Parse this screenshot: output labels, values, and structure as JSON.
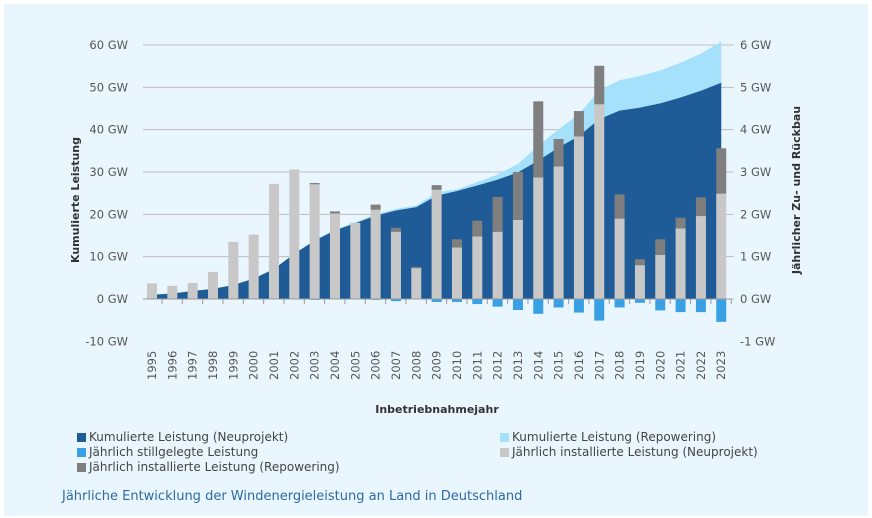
{
  "chart_data": {
    "type": "bar+area",
    "title": "",
    "caption": "Jährliche Entwicklung der Windenergieleistung an Land in Deutschland",
    "xlabel": "Inbetriebnahmejahr",
    "ylabel_left": "Kumulierte Leistung",
    "ylabel_right": "Jährlicher Zu- und Rückbau",
    "ylim_left": [
      -10,
      60
    ],
    "ylim_right": [
      -1,
      6
    ],
    "yticks_left": [
      "-10 GW",
      "0 GW",
      "10 GW",
      "20 GW",
      "30 GW",
      "40 GW",
      "50 GW",
      "60 GW"
    ],
    "yticks_right": [
      "-1 GW",
      "0 GW",
      "1 GW",
      "2 GW",
      "3 GW",
      "4 GW",
      "5 GW",
      "6 GW"
    ],
    "grid": true,
    "legend_position": "bottom",
    "categories": [
      "1995",
      "1996",
      "1997",
      "1998",
      "1999",
      "2000",
      "2001",
      "2002",
      "2003",
      "2004",
      "2005",
      "2006",
      "2007",
      "2008",
      "2009",
      "2010",
      "2011",
      "2012",
      "2013",
      "2014",
      "2015",
      "2016",
      "2017",
      "2018",
      "2019",
      "2020",
      "2021",
      "2022",
      "2023"
    ],
    "series": [
      {
        "name": "Kumulierte Leistung (Neuprojekt)",
        "type": "area",
        "axis": "left",
        "color": "#1e5b97",
        "values": [
          1.0,
          1.3,
          1.9,
          2.4,
          3.3,
          4.8,
          7.1,
          10.7,
          13.8,
          16.2,
          17.9,
          19.7,
          20.9,
          21.7,
          24.4,
          25.5,
          26.8,
          28.2,
          29.9,
          32.7,
          35.8,
          38.5,
          42.5,
          44.5,
          45.2,
          46.2,
          47.6,
          49.2,
          51.1
        ]
      },
      {
        "name": "Kumulierte Leistung (Repowering)",
        "type": "area",
        "axis": "left",
        "color": "#a6e1fb",
        "stacked_total": true,
        "values": [
          1.0,
          1.3,
          1.9,
          2.4,
          3.3,
          4.8,
          7.1,
          10.7,
          13.9,
          16.4,
          18.1,
          20.0,
          21.3,
          22.1,
          25.2,
          25.9,
          27.6,
          29.4,
          31.9,
          36.2,
          40.1,
          43.7,
          49.3,
          51.7,
          52.7,
          54.0,
          55.8,
          58.0,
          60.8
        ]
      },
      {
        "name": "Jährlich stillgelegte Leistung",
        "type": "bar",
        "axis": "right",
        "color": "#3aa0e4",
        "values": [
          0,
          0,
          0,
          0,
          0,
          0,
          0,
          0,
          -0.02,
          0,
          -0.01,
          -0.02,
          -0.05,
          -0.01,
          -0.07,
          -0.07,
          -0.12,
          -0.18,
          -0.26,
          -0.35,
          -0.2,
          -0.32,
          -0.51,
          -0.2,
          -0.09,
          -0.27,
          -0.31,
          -0.31,
          -0.54
        ]
      },
      {
        "name": "Jährlich installierte Leistung (Neuprojekt)",
        "type": "bar",
        "axis": "right",
        "color": "#c8c8c8",
        "values": [
          0.37,
          0.31,
          0.38,
          0.64,
          1.35,
          1.52,
          2.72,
          3.06,
          2.71,
          2.02,
          1.8,
          2.11,
          1.59,
          0.73,
          2.58,
          1.22,
          1.48,
          1.59,
          1.87,
          2.87,
          3.13,
          3.84,
          4.6,
          1.9,
          0.8,
          1.04,
          1.67,
          1.96,
          2.49
        ]
      },
      {
        "name": "Jährlich installierte Leistung (Repowering)",
        "type": "bar",
        "axis": "right",
        "color": "#7f7f7f",
        "values": [
          0,
          0,
          0,
          0,
          0,
          0,
          0,
          0,
          0.03,
          0.05,
          0,
          0.12,
          0.09,
          0.03,
          0.11,
          0.19,
          0.37,
          0.82,
          1.13,
          1.8,
          0.65,
          0.6,
          0.91,
          0.57,
          0.14,
          0.37,
          0.25,
          0.44,
          1.07
        ]
      }
    ]
  },
  "legend": [
    {
      "label": "Kumulierte Leistung (Neuprojekt)",
      "color": "#1e5b97"
    },
    {
      "label": "Kumulierte Leistung (Repowering)",
      "color": "#a6e1fb"
    },
    {
      "label": "Jährlich stillgelegte Leistung",
      "color": "#3aa0e4"
    },
    {
      "label": "Jährlich installierte Leistung (Neuprojekt)",
      "color": "#c8c8c8"
    },
    {
      "label": "Jährlich installierte Leistung (Repowering)",
      "color": "#7f7f7f"
    }
  ]
}
